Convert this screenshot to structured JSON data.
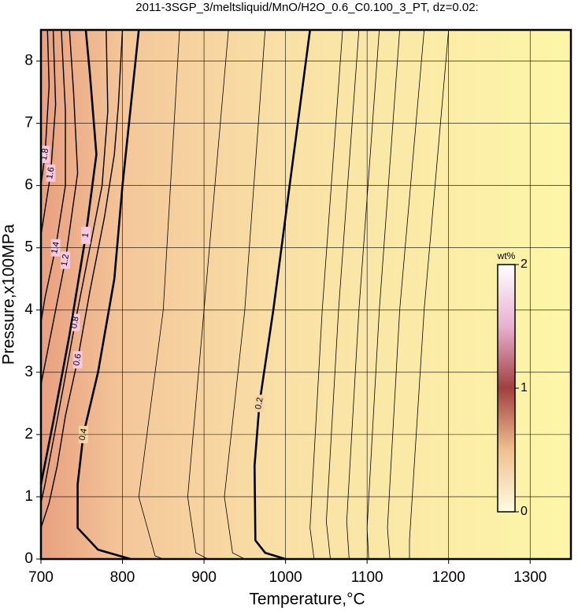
{
  "chart_data": {
    "type": "contour",
    "title": "2011-3SGP_3/meltsliquid/MnO/H2O_0.6_C0.100_3_PT, dz=0.02:",
    "x_label": "Temperature,°C",
    "y_label": "Pressure,x100MPa",
    "xlim": [
      700,
      1350
    ],
    "ylim": [
      0,
      8.5
    ],
    "xticks": [
      700,
      800,
      900,
      1000,
      1100,
      1200,
      1300
    ],
    "yticks": [
      0,
      1,
      2,
      3,
      4,
      5,
      6,
      7,
      8
    ],
    "grid": true,
    "colorbar": {
      "label": "wt%",
      "lim": [
        0,
        2
      ],
      "ticks": [
        0,
        1,
        2
      ]
    },
    "contours": [
      {
        "level": 0.2,
        "label": "0.2",
        "points": [
          [
            1030,
            8.5
          ],
          [
            1015,
            7
          ],
          [
            1000,
            5.5
          ],
          [
            985,
            4
          ],
          [
            968,
            2.5
          ],
          [
            962,
            1.5
          ],
          [
            963,
            0.3
          ],
          [
            975,
            0.1
          ],
          [
            1000,
            0
          ]
        ]
      },
      {
        "level": 0.4,
        "label": "0.4",
        "points": [
          [
            820,
            8.5
          ],
          [
            808,
            7
          ],
          [
            800,
            6
          ],
          [
            790,
            4.5
          ],
          [
            770,
            3
          ],
          [
            752,
            2
          ],
          [
            745,
            1.2
          ],
          [
            745,
            0.5
          ],
          [
            770,
            0.15
          ],
          [
            810,
            0
          ]
        ]
      },
      {
        "level": 0.6,
        "label": "0.6",
        "points": [
          [
            800,
            8.5
          ],
          [
            795,
            7.3
          ],
          [
            790,
            6.5
          ],
          [
            778,
            5.5
          ],
          [
            760,
            4.3
          ],
          [
            745,
            3.2
          ],
          [
            730,
            2.3
          ],
          [
            720,
            1.5
          ],
          [
            710,
            0.9
          ],
          [
            700,
            0.5
          ]
        ]
      },
      {
        "level": 0.8,
        "label": "0.8",
        "points": [
          [
            780,
            8.5
          ],
          [
            782,
            7.2
          ],
          [
            775,
            6
          ],
          [
            760,
            5
          ],
          [
            742,
            3.8
          ],
          [
            728,
            2.8
          ],
          [
            705,
            1.2
          ],
          [
            700,
            0.9
          ]
        ]
      },
      {
        "level": 1,
        "label": "1",
        "points": [
          [
            755,
            8.5
          ],
          [
            760,
            7.8
          ],
          [
            768,
            6.5
          ],
          [
            755,
            5.2
          ],
          [
            735,
            3.6
          ],
          [
            715,
            2.2
          ],
          [
            700,
            1.2
          ]
        ]
      },
      {
        "level": 1.2,
        "label": "1.2",
        "points": [
          [
            735,
            8.5
          ],
          [
            740,
            7.5
          ],
          [
            745,
            6.2
          ],
          [
            730,
            4.8
          ],
          [
            715,
            3.8
          ],
          [
            700,
            2.8
          ]
        ]
      },
      {
        "level": 1.4,
        "label": "1.4",
        "points": [
          [
            725,
            8.5
          ],
          [
            730,
            7.2
          ],
          [
            730,
            6
          ],
          [
            718,
            5
          ],
          [
            705,
            4.2
          ],
          [
            700,
            3.8
          ]
        ]
      },
      {
        "level": 1.6,
        "label": "1.6",
        "points": [
          [
            715,
            8.5
          ],
          [
            718,
            7.3
          ],
          [
            712,
            6.2
          ],
          [
            700,
            5.2
          ]
        ]
      },
      {
        "level": 1.8,
        "label": "1.8",
        "points": [
          [
            708,
            8.5
          ],
          [
            710,
            7.6
          ],
          [
            705,
            6.5
          ],
          [
            700,
            6
          ]
        ]
      }
    ],
    "minor_contours": [
      {
        "level": 0.35,
        "points": [
          [
            870,
            8.5
          ],
          [
            850,
            4
          ],
          [
            820,
            1
          ],
          [
            840,
            0.05
          ],
          [
            850,
            0
          ]
        ]
      },
      {
        "level": 0.3,
        "points": [
          [
            930,
            8.5
          ],
          [
            900,
            4
          ],
          [
            880,
            1
          ],
          [
            890,
            0.1
          ],
          [
            905,
            0
          ]
        ]
      },
      {
        "level": 0.25,
        "points": [
          [
            975,
            8.5
          ],
          [
            950,
            4
          ],
          [
            925,
            1
          ],
          [
            935,
            0.1
          ],
          [
            950,
            0
          ]
        ]
      },
      {
        "level": 0.18,
        "points": [
          [
            1070,
            8.5
          ],
          [
            1045,
            4
          ],
          [
            1030,
            0.5
          ],
          [
            1035,
            0
          ]
        ]
      },
      {
        "level": 0.16,
        "points": [
          [
            1090,
            8.5
          ],
          [
            1065,
            4
          ],
          [
            1050,
            0.6
          ],
          [
            1055,
            0
          ]
        ]
      },
      {
        "level": 0.14,
        "points": [
          [
            1115,
            8.5
          ],
          [
            1090,
            4
          ],
          [
            1075,
            0.6
          ],
          [
            1078,
            0
          ]
        ]
      },
      {
        "level": 0.12,
        "points": [
          [
            1140,
            8.5
          ],
          [
            1115,
            4
          ],
          [
            1100,
            0.5
          ],
          [
            1102,
            0
          ]
        ]
      },
      {
        "level": 0.1,
        "points": [
          [
            1170,
            8.5
          ],
          [
            1140,
            4
          ],
          [
            1125,
            0.5
          ],
          [
            1128,
            0
          ]
        ]
      },
      {
        "level": 0.08,
        "points": [
          [
            1200,
            8.5
          ],
          [
            1170,
            4
          ],
          [
            1152,
            0.3
          ],
          [
            1152,
            0
          ]
        ]
      }
    ]
  }
}
